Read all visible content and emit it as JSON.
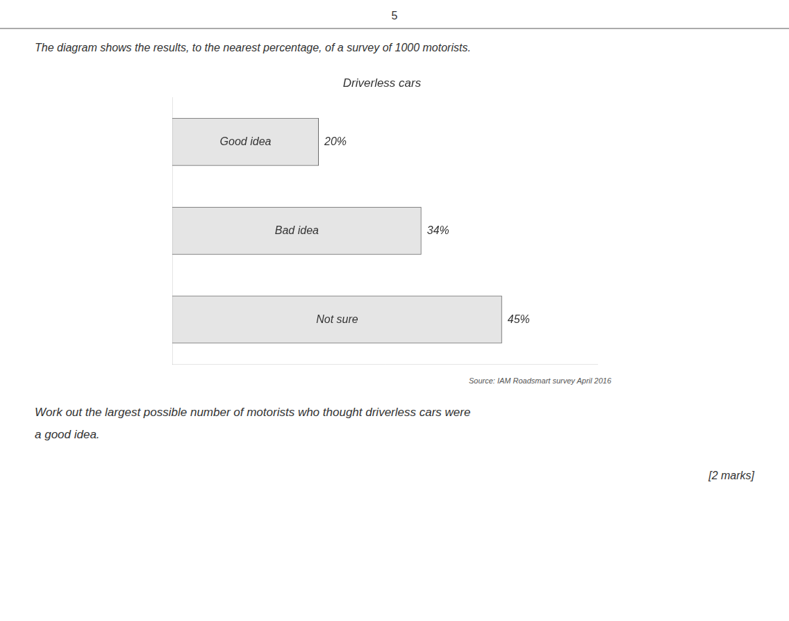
{
  "chart_data": {
    "type": "bar",
    "orientation": "horizontal",
    "title": "Driverless cars",
    "categories": [
      "Good idea",
      "Bad idea",
      "Not sure"
    ],
    "values": [
      20,
      34,
      45
    ],
    "value_labels": [
      "20%",
      "34%",
      "45%"
    ],
    "data_labels": true,
    "xlim": [
      0,
      58
    ],
    "xticks": [],
    "grid": false,
    "tick_labels": false,
    "annotations": [
      "5",
      "The diagram shows the results, to the nearest percentage, of a survey of 1000 motorists.",
      "Source: IAM Roadsmart survey April 2016",
      "Work out the largest possible number of motorists who thought driverless cars were",
      "a good idea.",
      "[2 marks]"
    ]
  }
}
